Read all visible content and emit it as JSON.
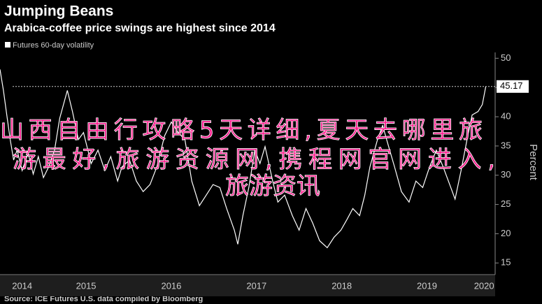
{
  "chart_data": {
    "type": "line",
    "title": "Jumping Beans",
    "subtitle": "Arabica-coffee price swings are highest since 2014",
    "y_axis_label": "Percent",
    "source": "Source: ICE Futures U.S. data compiled by Bloomberg",
    "overlay_text": [
      "山西自由行攻略5天详细,夏天去哪里旅",
      "游最好,旅游资源网,携程网官网进入,",
      "旅游资讯"
    ],
    "last_value": 45.17,
    "xlim": [
      2014.49,
      2020.3
    ],
    "ylim": [
      13,
      51
    ],
    "yticks": [
      15,
      20,
      25,
      30,
      35,
      40,
      45,
      50
    ],
    "xticks": [
      {
        "value": 2014.75,
        "label": "2014"
      },
      {
        "value": 2015.5,
        "label": "2015"
      },
      {
        "value": 2016.5,
        "label": "2016"
      },
      {
        "value": 2017.5,
        "label": "2017"
      },
      {
        "value": 2018.5,
        "label": "2018"
      },
      {
        "value": 2019.5,
        "label": "2019"
      },
      {
        "value": 2020.17,
        "label": "2020"
      }
    ],
    "x": [
      2014.49,
      2014.53,
      2014.57,
      2014.61,
      2014.65,
      2014.69,
      2014.75,
      2014.82,
      2014.88,
      2014.94,
      2015.0,
      2015.06,
      2015.13,
      2015.19,
      2015.28,
      2015.34,
      2015.41,
      2015.47,
      2015.56,
      2015.64,
      2015.72,
      2015.79,
      2015.87,
      2015.92,
      2016.01,
      2016.09,
      2016.17,
      2016.25,
      2016.33,
      2016.42,
      2016.5,
      2016.58,
      2016.66,
      2016.74,
      2016.83,
      2016.91,
      2016.99,
      2017.07,
      2017.15,
      2017.24,
      2017.28,
      2017.34,
      2017.41,
      2017.48,
      2017.54,
      2017.6,
      2017.69,
      2017.75,
      2017.83,
      2017.92,
      2018.0,
      2018.08,
      2018.16,
      2018.24,
      2018.33,
      2018.41,
      2018.49,
      2018.56,
      2018.63,
      2018.71,
      2018.77,
      2018.83,
      2018.92,
      2018.98,
      2019.05,
      2019.12,
      2019.2,
      2019.29,
      2019.37,
      2019.45,
      2019.53,
      2019.61,
      2019.69,
      2019.78,
      2019.83,
      2019.9,
      2019.97,
      2020.03,
      2020.1,
      2020.15,
      2020.19
    ],
    "series": [
      {
        "name": "Futures 60-day volatility",
        "color": "#ffffff",
        "values": [
          48.1,
          44.5,
          40.3,
          36.1,
          32.6,
          34.3,
          30.8,
          33.8,
          30.2,
          33.2,
          29.6,
          31.4,
          34.3,
          39.7,
          44.5,
          40.9,
          36.1,
          37.3,
          32.0,
          34.3,
          30.8,
          33.2,
          29.0,
          31.4,
          32.6,
          29.0,
          27.2,
          28.4,
          31.4,
          36.7,
          39.1,
          37.3,
          36.1,
          29.0,
          24.8,
          26.6,
          28.4,
          27.9,
          24.3,
          20.6,
          18.2,
          23.1,
          27.9,
          34.3,
          32.0,
          34.9,
          29.0,
          25.4,
          26.6,
          23.1,
          20.6,
          24.3,
          21.8,
          18.8,
          17.6,
          19.4,
          20.6,
          22.4,
          24.3,
          23.1,
          26.6,
          31.4,
          36.1,
          38.5,
          34.9,
          31.4,
          27.2,
          25.4,
          29.0,
          27.9,
          31.4,
          34.3,
          31.4,
          27.9,
          25.9,
          30.8,
          36.1,
          40.3,
          40.9,
          42.1,
          45.17
        ]
      }
    ]
  }
}
